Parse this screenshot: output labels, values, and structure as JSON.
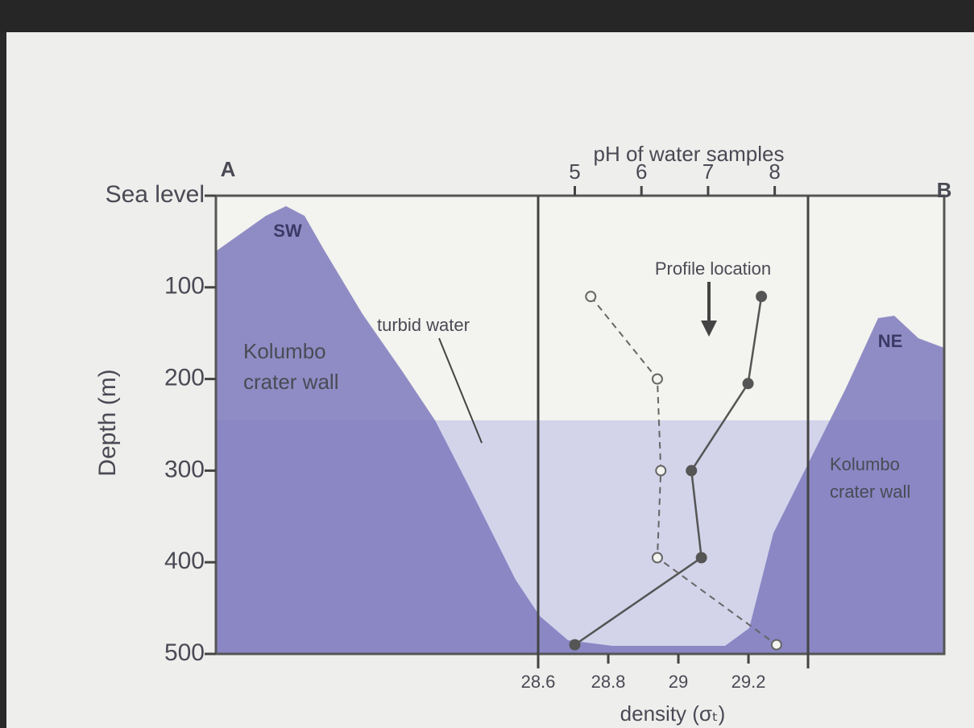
{
  "chart_data": {
    "type": "line",
    "title": "pH of water samples",
    "y_label": "Depth (m)",
    "x_label": "density (σₜ)",
    "annotations": [
      "A",
      "B",
      "SW",
      "NE",
      "Kolumbo",
      "crater wall",
      "Kolumbo",
      "crater wall",
      "turbid water",
      "Profile location"
    ],
    "ylim": [
      0,
      500
    ],
    "yticks": [
      {
        "value": 0,
        "label": "Sea level"
      },
      100,
      200,
      300,
      400,
      500
    ],
    "y_inverted": true,
    "xlim": [
      4.45,
      8.5
    ],
    "xticks": [
      5,
      6,
      7,
      8
    ],
    "x2lim": [
      28.6,
      29.37
    ],
    "x2ticks": [
      28.6,
      28.8,
      29.0,
      29.2
    ],
    "series": [
      {
        "axis": "x",
        "color": "#555555",
        "style": "solid",
        "marker": "filled",
        "x": [
          7.8,
          7.6,
          6.75,
          6.9,
          5.0
        ],
        "values": [
          110,
          205,
          300,
          395,
          490
        ]
      },
      {
        "axis": "x2",
        "color": "#666666",
        "style": "dashed",
        "marker": "open",
        "x": [
          28.75,
          28.94,
          28.95,
          28.94,
          29.28
        ],
        "values": [
          110,
          200,
          300,
          395,
          490
        ]
      }
    ]
  }
}
